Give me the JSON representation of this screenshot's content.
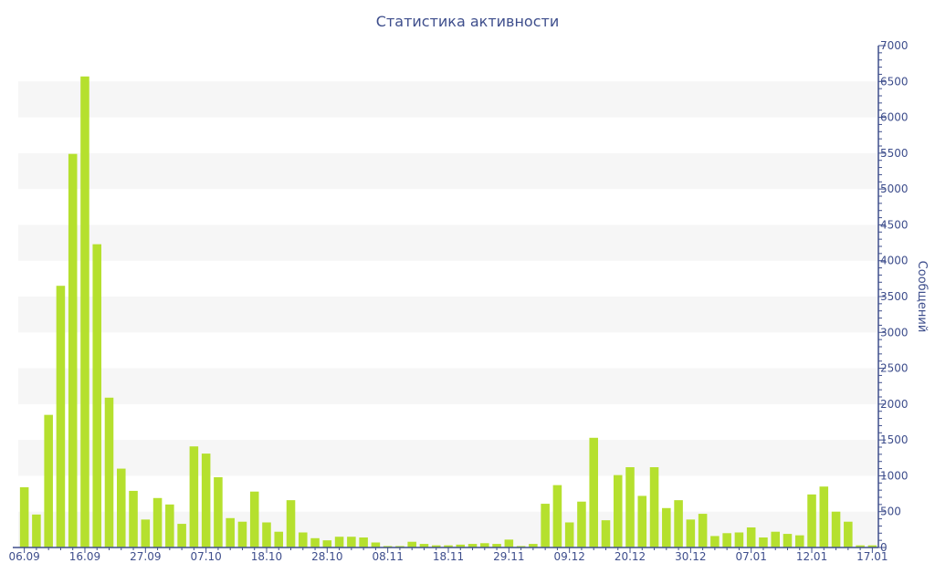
{
  "chart_data": {
    "type": "bar",
    "title": "Статистика активности",
    "xlabel": "",
    "ylabel": "Сообщений",
    "y_axis_side": "right",
    "ylim": [
      0,
      7000
    ],
    "y_ticks": [
      0,
      500,
      1000,
      1500,
      2000,
      2500,
      3000,
      3500,
      4000,
      4500,
      5000,
      5500,
      6000,
      6500,
      7000
    ],
    "x_tick_labels": [
      {
        "label": "06.09",
        "index": 0
      },
      {
        "label": "16.09",
        "index": 5
      },
      {
        "label": "27.09",
        "index": 10
      },
      {
        "label": "07.10",
        "index": 15
      },
      {
        "label": "18.10",
        "index": 20
      },
      {
        "label": "28.10",
        "index": 25
      },
      {
        "label": "08.11",
        "index": 30
      },
      {
        "label": "18.11",
        "index": 35
      },
      {
        "label": "29.11",
        "index": 40
      },
      {
        "label": "09.12",
        "index": 45
      },
      {
        "label": "20.12",
        "index": 50
      },
      {
        "label": "30.12",
        "index": 55
      },
      {
        "label": "07.01",
        "index": 60
      },
      {
        "label": "12.01",
        "index": 65
      },
      {
        "label": "17.01",
        "index": 70
      }
    ],
    "grid": "alternating horizontal bands",
    "colors": {
      "bar": "#b5e02e",
      "band": "#f6f6f6",
      "axis": "#3e4e8c",
      "text": "#3e4e8c"
    },
    "values": [
      840,
      460,
      1850,
      3650,
      5490,
      6570,
      4230,
      2090,
      1100,
      790,
      390,
      690,
      600,
      330,
      1410,
      1310,
      980,
      410,
      360,
      780,
      350,
      220,
      660,
      210,
      130,
      100,
      150,
      150,
      140,
      70,
      20,
      20,
      80,
      50,
      30,
      30,
      40,
      50,
      60,
      50,
      110,
      20,
      50,
      610,
      870,
      350,
      640,
      1530,
      380,
      1010,
      1120,
      720,
      1120,
      550,
      660,
      390,
      470,
      160,
      200,
      210,
      280,
      140,
      220,
      190,
      170,
      740,
      850,
      500,
      360,
      30,
      30
    ]
  }
}
